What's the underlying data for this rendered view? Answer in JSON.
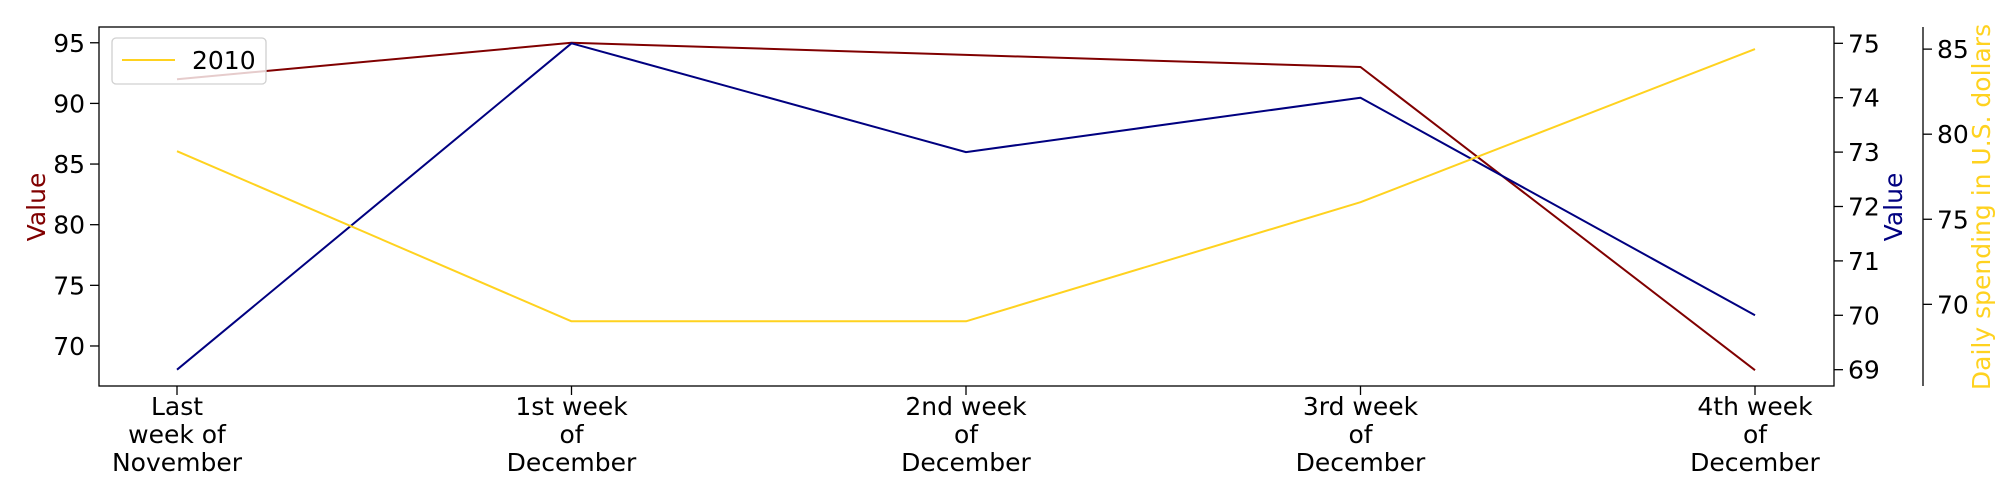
{
  "chart_data": {
    "type": "line",
    "categories": [
      [
        "Last",
        "week of",
        "November"
      ],
      [
        "1st week",
        "of",
        "December"
      ],
      [
        "2nd week",
        "of",
        "December"
      ],
      [
        "3rd week",
        "of",
        "December"
      ],
      [
        "4th week",
        "of",
        "December"
      ]
    ],
    "axes": {
      "left": {
        "label": "Value",
        "color": "#800000",
        "ylim": [
          66.7,
          96.3
        ],
        "ticks": [
          70,
          75,
          80,
          85,
          90,
          95
        ]
      },
      "right": {
        "label": "Value",
        "color": "#000080",
        "ylim": [
          68.7,
          75.3
        ],
        "ticks": [
          69,
          70,
          71,
          72,
          73,
          74,
          75
        ]
      },
      "far_right": {
        "label": "Daily spending in U.S. dollars",
        "color": "#FFD21F",
        "ylim": [
          65.2,
          86.3
        ],
        "ticks": [
          70,
          75,
          80,
          85
        ]
      }
    },
    "series": [
      {
        "axis": "left",
        "color": "#800000",
        "values": [
          92,
          95,
          94,
          93,
          68
        ]
      },
      {
        "axis": "right",
        "color": "#000080",
        "values": [
          69,
          75,
          73,
          74,
          70
        ]
      },
      {
        "name": "2010",
        "axis": "far_right",
        "color": "#FFD21F",
        "values": [
          79,
          69,
          69,
          76,
          85
        ]
      }
    ],
    "legend": {
      "entries": [
        "2010"
      ],
      "placement": "top-left"
    },
    "grid": false
  }
}
